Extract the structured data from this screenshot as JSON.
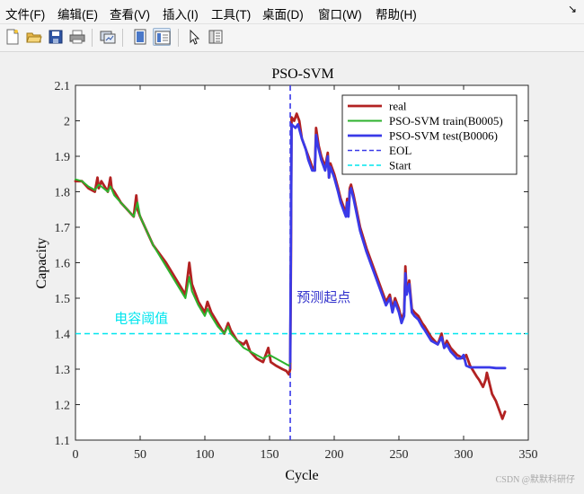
{
  "menu": [
    "文件(F)",
    "编辑(E)",
    "查看(V)",
    "插入(I)",
    "工具(T)",
    "桌面(D)",
    "窗口(W)",
    "帮助(H)"
  ],
  "menu_arrow": "↘",
  "toolbar_icons": [
    "new-figure-icon",
    "open-file-icon",
    "save-icon",
    "print-icon",
    "link-figure-icon",
    "hide-plot-tools-icon",
    "show-plot-tools-icon",
    "edit-plot-arrow-icon",
    "property-inspector-icon"
  ],
  "watermark": "CSDN @默默科研仔",
  "chart_data": {
    "type": "line",
    "title": "PSO-SVM",
    "xlabel": "Cycle",
    "ylabel": "Capacity",
    "xlim": [
      0,
      350
    ],
    "ylim": [
      1.1,
      2.1
    ],
    "xticks": [
      0,
      50,
      100,
      150,
      200,
      250,
      300,
      350
    ],
    "yticks": [
      1.1,
      1.2,
      1.3,
      1.4,
      1.5,
      1.6,
      1.7,
      1.8,
      1.9,
      2.0,
      2.1
    ],
    "ytick_labels": [
      "1.1",
      "1.2",
      "1.3",
      "1.4",
      "1.5",
      "1.6",
      "1.7",
      "1.8",
      "1.9",
      "2",
      "2.1"
    ],
    "grid": false,
    "legend_position": "top-right",
    "annotations": [
      {
        "text": "电容阈值",
        "x": 30,
        "y": 1.43,
        "color": "#00e5ee"
      },
      {
        "text": "预测起点",
        "x": 171,
        "y": 1.49,
        "color": "#3333cc"
      }
    ],
    "series": [
      {
        "name": "real",
        "color": "#b22222",
        "style": "solid",
        "width": 2.8,
        "x": [
          0,
          5,
          10,
          15,
          17,
          18,
          20,
          25,
          27,
          28,
          30,
          35,
          40,
          45,
          47,
          48,
          50,
          55,
          60,
          70,
          80,
          85,
          88,
          90,
          95,
          100,
          102,
          105,
          110,
          115,
          118,
          120,
          125,
          130,
          132,
          135,
          140,
          145,
          149,
          151,
          155,
          160,
          163,
          165,
          166,
          166.5,
          167,
          169,
          171,
          173,
          175,
          177,
          180,
          183,
          185,
          186,
          188,
          190,
          193,
          195,
          196,
          197,
          200,
          203,
          205,
          207,
          209,
          210,
          211,
          212,
          213,
          215,
          220,
          225,
          230,
          235,
          240,
          243,
          245,
          247,
          250,
          252,
          254,
          255,
          256,
          258,
          260,
          262,
          265,
          268,
          270,
          275,
          280,
          283,
          285,
          287,
          290,
          295,
          300,
          302,
          305,
          310,
          312,
          315,
          317,
          318,
          320,
          322,
          325,
          327,
          330,
          332
        ],
        "y": [
          1.83,
          1.83,
          1.81,
          1.8,
          1.84,
          1.81,
          1.83,
          1.8,
          1.84,
          1.81,
          1.8,
          1.77,
          1.75,
          1.73,
          1.79,
          1.75,
          1.73,
          1.69,
          1.65,
          1.6,
          1.54,
          1.51,
          1.6,
          1.54,
          1.49,
          1.46,
          1.49,
          1.46,
          1.43,
          1.4,
          1.43,
          1.41,
          1.38,
          1.37,
          1.38,
          1.35,
          1.33,
          1.32,
          1.36,
          1.32,
          1.31,
          1.3,
          1.295,
          1.285,
          1.3,
          1.6,
          2.01,
          2.0,
          2.02,
          2.0,
          1.95,
          1.93,
          1.9,
          1.87,
          1.86,
          1.98,
          1.93,
          1.9,
          1.87,
          1.91,
          1.84,
          1.88,
          1.85,
          1.81,
          1.78,
          1.76,
          1.74,
          1.78,
          1.74,
          1.81,
          1.82,
          1.79,
          1.7,
          1.64,
          1.59,
          1.54,
          1.49,
          1.51,
          1.47,
          1.5,
          1.47,
          1.44,
          1.46,
          1.59,
          1.52,
          1.55,
          1.47,
          1.46,
          1.45,
          1.43,
          1.42,
          1.39,
          1.37,
          1.4,
          1.36,
          1.38,
          1.36,
          1.34,
          1.33,
          1.34,
          1.31,
          1.28,
          1.27,
          1.25,
          1.27,
          1.29,
          1.26,
          1.23,
          1.21,
          1.19,
          1.16,
          1.18
        ]
      },
      {
        "name": "PSO-SVM train(B0005)",
        "color": "#2db22d",
        "style": "solid",
        "width": 2,
        "x": [
          0,
          5,
          10,
          15,
          18,
          20,
          25,
          27,
          30,
          35,
          40,
          45,
          48,
          50,
          55,
          60,
          70,
          80,
          85,
          88,
          90,
          95,
          100,
          102,
          105,
          110,
          115,
          118,
          120,
          125,
          130,
          135,
          140,
          145,
          150,
          155,
          160,
          165,
          166
        ],
        "y": [
          1.835,
          1.83,
          1.815,
          1.805,
          1.82,
          1.815,
          1.8,
          1.815,
          1.79,
          1.77,
          1.75,
          1.73,
          1.77,
          1.73,
          1.69,
          1.65,
          1.59,
          1.53,
          1.5,
          1.56,
          1.52,
          1.48,
          1.45,
          1.47,
          1.45,
          1.42,
          1.4,
          1.42,
          1.4,
          1.38,
          1.36,
          1.35,
          1.34,
          1.33,
          1.34,
          1.33,
          1.32,
          1.31,
          1.315
        ]
      },
      {
        "name": "PSO-SVM test(B0006)",
        "color": "#3a3ae8",
        "style": "solid",
        "width": 2.8,
        "x": [
          166,
          167,
          170,
          172,
          175,
          178,
          180,
          183,
          185,
          186,
          188,
          190,
          193,
          195,
          196,
          197,
          200,
          203,
          205,
          207,
          209,
          210,
          211,
          212,
          213,
          215,
          220,
          225,
          230,
          235,
          240,
          243,
          245,
          247,
          250,
          252,
          254,
          255,
          256,
          258,
          260,
          262,
          265,
          268,
          270,
          275,
          280,
          283,
          285,
          287,
          290,
          295,
          298,
          300,
          302,
          305,
          310,
          315,
          320,
          325,
          332
        ],
        "y": [
          1.32,
          1.99,
          1.98,
          1.99,
          1.95,
          1.92,
          1.89,
          1.86,
          1.86,
          1.96,
          1.92,
          1.89,
          1.86,
          1.9,
          1.84,
          1.87,
          1.84,
          1.8,
          1.77,
          1.75,
          1.73,
          1.77,
          1.73,
          1.8,
          1.81,
          1.78,
          1.69,
          1.63,
          1.58,
          1.53,
          1.48,
          1.5,
          1.46,
          1.49,
          1.46,
          1.43,
          1.45,
          1.57,
          1.51,
          1.54,
          1.46,
          1.45,
          1.44,
          1.42,
          1.41,
          1.38,
          1.37,
          1.39,
          1.36,
          1.37,
          1.35,
          1.33,
          1.33,
          1.34,
          1.31,
          1.305,
          1.305,
          1.305,
          1.305,
          1.303,
          1.303
        ]
      },
      {
        "name": "EOL",
        "color": "#3a3ae8",
        "style": "dashed",
        "width": 1.6,
        "vertical_x": 166
      },
      {
        "name": "Start",
        "color": "#00e5ee",
        "style": "dashed",
        "width": 1.6,
        "horizontal_y": 1.4
      }
    ]
  }
}
